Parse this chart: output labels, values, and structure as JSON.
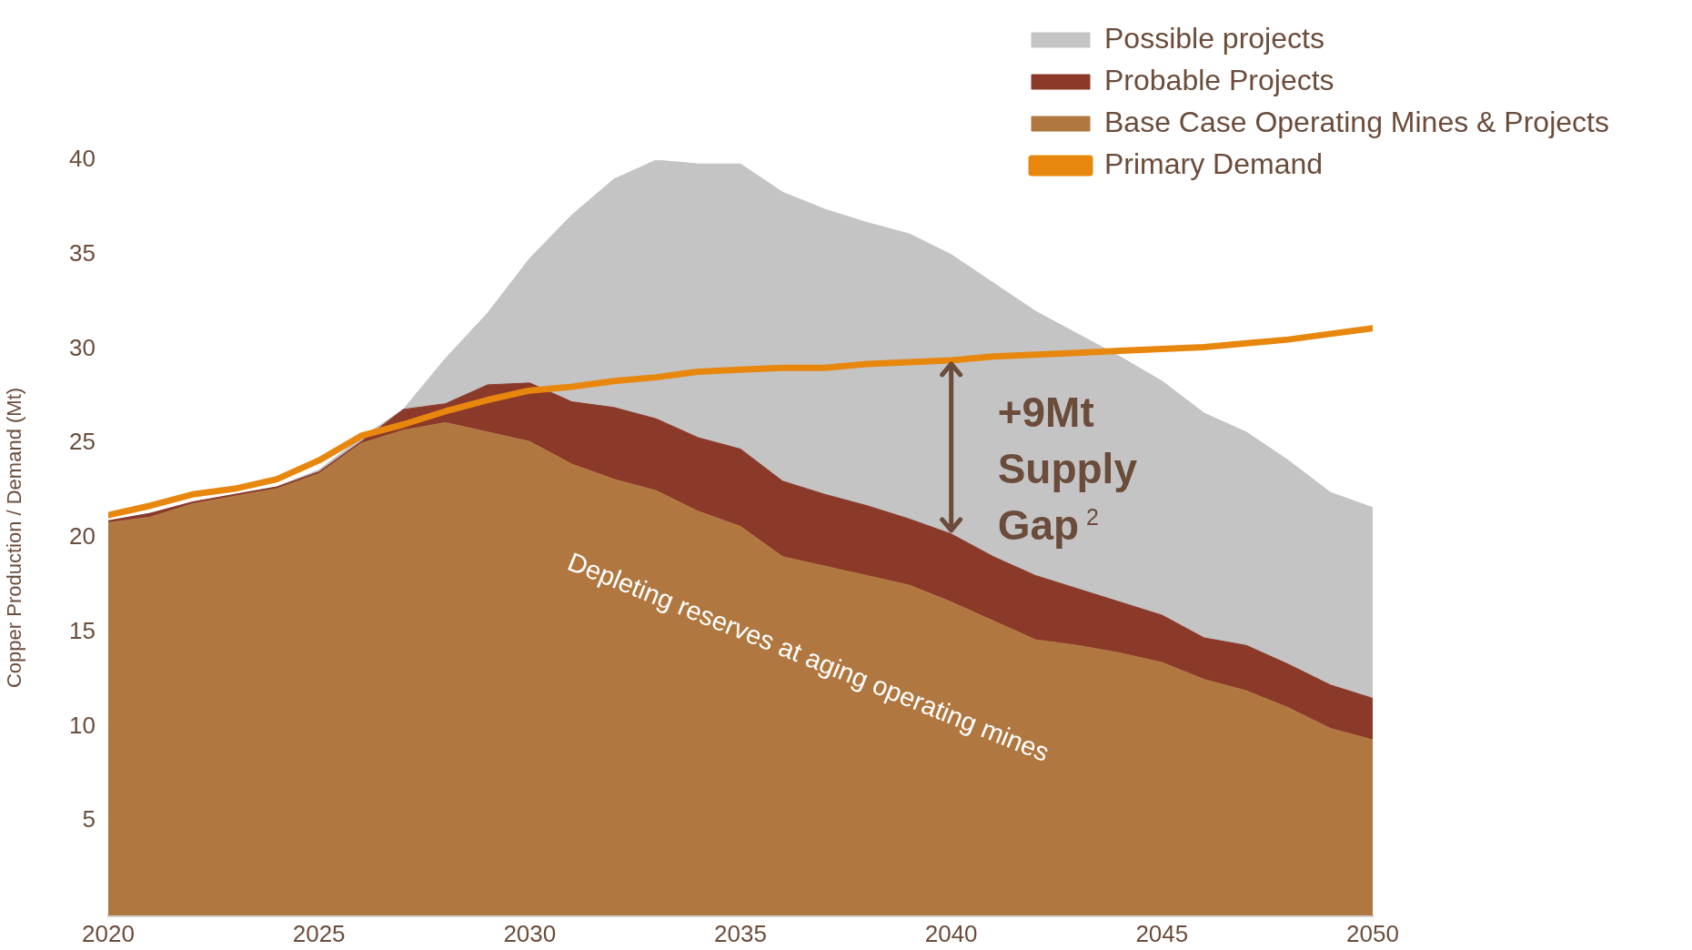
{
  "chart_data": {
    "type": "area",
    "stacked": true,
    "ylabel": "Copper Production / Demand (Mt)",
    "x": [
      2020,
      2021,
      2022,
      2023,
      2024,
      2025,
      2026,
      2027,
      2028,
      2029,
      2030,
      2031,
      2032,
      2033,
      2034,
      2035,
      2036,
      2037,
      2038,
      2039,
      2040,
      2041,
      2042,
      2043,
      2044,
      2045,
      2046,
      2047,
      2048,
      2049,
      2050
    ],
    "xlim": [
      2020,
      2050
    ],
    "xticks": [
      2020,
      2025,
      2030,
      2035,
      2040,
      2045,
      2050
    ],
    "ylim": [
      0,
      40
    ],
    "yticks": [
      5,
      10,
      15,
      20,
      25,
      30,
      35,
      40
    ],
    "legend": "top right",
    "marker": "none",
    "series": [
      {
        "name": "Base Case Operating Mines & Projects",
        "type": "area",
        "color": "#b07840",
        "values": [
          20.8,
          21.1,
          21.8,
          22.2,
          22.6,
          23.4,
          25.0,
          25.7,
          26.1,
          25.6,
          25.1,
          23.9,
          23.1,
          22.5,
          21.4,
          20.6,
          19.0,
          18.5,
          18.0,
          17.5,
          16.6,
          15.6,
          14.6,
          14.3,
          13.9,
          13.4,
          12.5,
          11.9,
          11.0,
          9.9,
          9.3
        ]
      },
      {
        "name": "Probable Projects",
        "type": "area",
        "color": "#8b3a2a",
        "values": [
          0.1,
          0.2,
          0.1,
          0.1,
          0.1,
          0.1,
          0.1,
          1.1,
          1.0,
          2.5,
          3.1,
          3.3,
          3.8,
          3.8,
          3.9,
          4.1,
          4.0,
          3.8,
          3.7,
          3.5,
          3.6,
          3.4,
          3.4,
          3.0,
          2.7,
          2.5,
          2.2,
          2.4,
          2.3,
          2.3,
          2.2
        ]
      },
      {
        "name": "Possible projects",
        "type": "area",
        "color": "#c4c4c4",
        "values": [
          0,
          0,
          0,
          0,
          0,
          0.1,
          0.2,
          0,
          2.4,
          3.8,
          6.6,
          9.9,
          12.1,
          13.7,
          14.5,
          15.1,
          15.3,
          15.1,
          15.0,
          15.1,
          14.8,
          14.5,
          14.0,
          13.5,
          13.0,
          12.4,
          11.9,
          11.3,
          10.8,
          10.2,
          10.1
        ]
      },
      {
        "name": "Primary Demand",
        "type": "line",
        "color": "#e8870e",
        "values": [
          21.2,
          21.7,
          22.3,
          22.6,
          23.1,
          24.1,
          25.4,
          26.0,
          26.7,
          27.3,
          27.8,
          28.0,
          28.3,
          28.5,
          28.8,
          28.9,
          29.0,
          29.0,
          29.2,
          29.3,
          29.4,
          29.6,
          29.7,
          29.8,
          29.9,
          30.0,
          30.1,
          30.3,
          30.5,
          30.8,
          31.1
        ]
      }
    ],
    "annotations": [
      {
        "text": "+9Mt Supply Gap$^{2}$",
        "x": 2040,
        "y": 29.4
      },
      "Depleting reserves at aging operating mines"
    ]
  }
}
